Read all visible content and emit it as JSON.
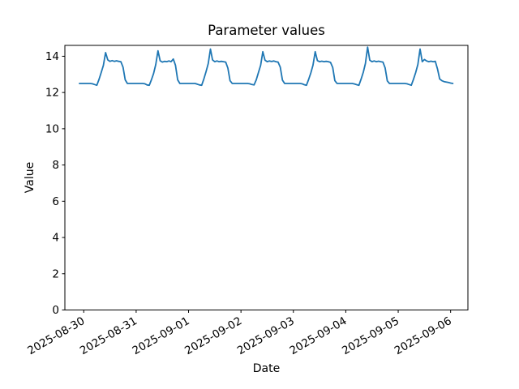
{
  "figure": {
    "background": "#ffffff",
    "axis_color": "#000000",
    "text_color": "#000000"
  },
  "chart_data": {
    "type": "line",
    "title": "Parameter values",
    "xlabel": "Date",
    "ylabel": "Value",
    "line_color": "#1f77b4",
    "grid": false,
    "legend_position": "none",
    "ylim": [
      0,
      14.6
    ],
    "yticks": [
      0,
      2,
      4,
      6,
      8,
      10,
      12,
      14
    ],
    "xtick_labels": [
      "2025-08-30",
      "2025-08-31",
      "2025-09-01",
      "2025-09-02",
      "2025-09-03",
      "2025-09-04",
      "2025-09-05",
      "2025-09-06"
    ],
    "xtick_rotation_deg": 30,
    "xlim_days": [
      -0.36,
      7.33
    ],
    "x_start_hours_offset": -2,
    "sample_interval_hours": 1,
    "series": [
      {
        "name": "parameter-values",
        "values": [
          12.5,
          12.5,
          12.5,
          12.5,
          12.5,
          12.5,
          12.48,
          12.44,
          12.4,
          12.72,
          13.1,
          13.5,
          14.2,
          13.8,
          13.72,
          13.76,
          13.72,
          13.75,
          13.72,
          13.7,
          13.4,
          12.7,
          12.5,
          12.5,
          12.5,
          12.5,
          12.5,
          12.5,
          12.5,
          12.5,
          12.48,
          12.42,
          12.4,
          12.7,
          13.05,
          13.55,
          14.3,
          13.75,
          13.68,
          13.72,
          13.7,
          13.74,
          13.7,
          13.85,
          13.5,
          12.7,
          12.5,
          12.5,
          12.5,
          12.5,
          12.5,
          12.5,
          12.5,
          12.5,
          12.46,
          12.42,
          12.4,
          12.75,
          13.15,
          13.6,
          14.4,
          13.8,
          13.7,
          13.74,
          13.7,
          13.72,
          13.7,
          13.68,
          13.35,
          12.65,
          12.5,
          12.5,
          12.5,
          12.5,
          12.5,
          12.5,
          12.5,
          12.5,
          12.48,
          12.44,
          12.42,
          12.7,
          13.1,
          13.5,
          14.25,
          13.78,
          13.7,
          13.74,
          13.71,
          13.74,
          13.7,
          13.68,
          13.4,
          12.68,
          12.5,
          12.5,
          12.5,
          12.5,
          12.5,
          12.5,
          12.5,
          12.5,
          12.48,
          12.43,
          12.4,
          12.72,
          13.08,
          13.52,
          14.25,
          13.76,
          13.7,
          13.73,
          13.7,
          13.72,
          13.7,
          13.66,
          13.38,
          12.66,
          12.5,
          12.5,
          12.5,
          12.5,
          12.5,
          12.5,
          12.5,
          12.5,
          12.47,
          12.43,
          12.4,
          12.74,
          13.12,
          13.6,
          14.5,
          13.78,
          13.7,
          13.74,
          13.7,
          13.73,
          13.7,
          13.68,
          13.36,
          12.64,
          12.5,
          12.5,
          12.5,
          12.5,
          12.5,
          12.5,
          12.5,
          12.5,
          12.48,
          12.44,
          12.4,
          12.73,
          13.1,
          13.55,
          14.4,
          13.7,
          13.82,
          13.74,
          13.7,
          13.73,
          13.7,
          13.72,
          13.3,
          12.75,
          12.65,
          12.6,
          12.58,
          12.55,
          12.52,
          12.5
        ]
      }
    ]
  }
}
